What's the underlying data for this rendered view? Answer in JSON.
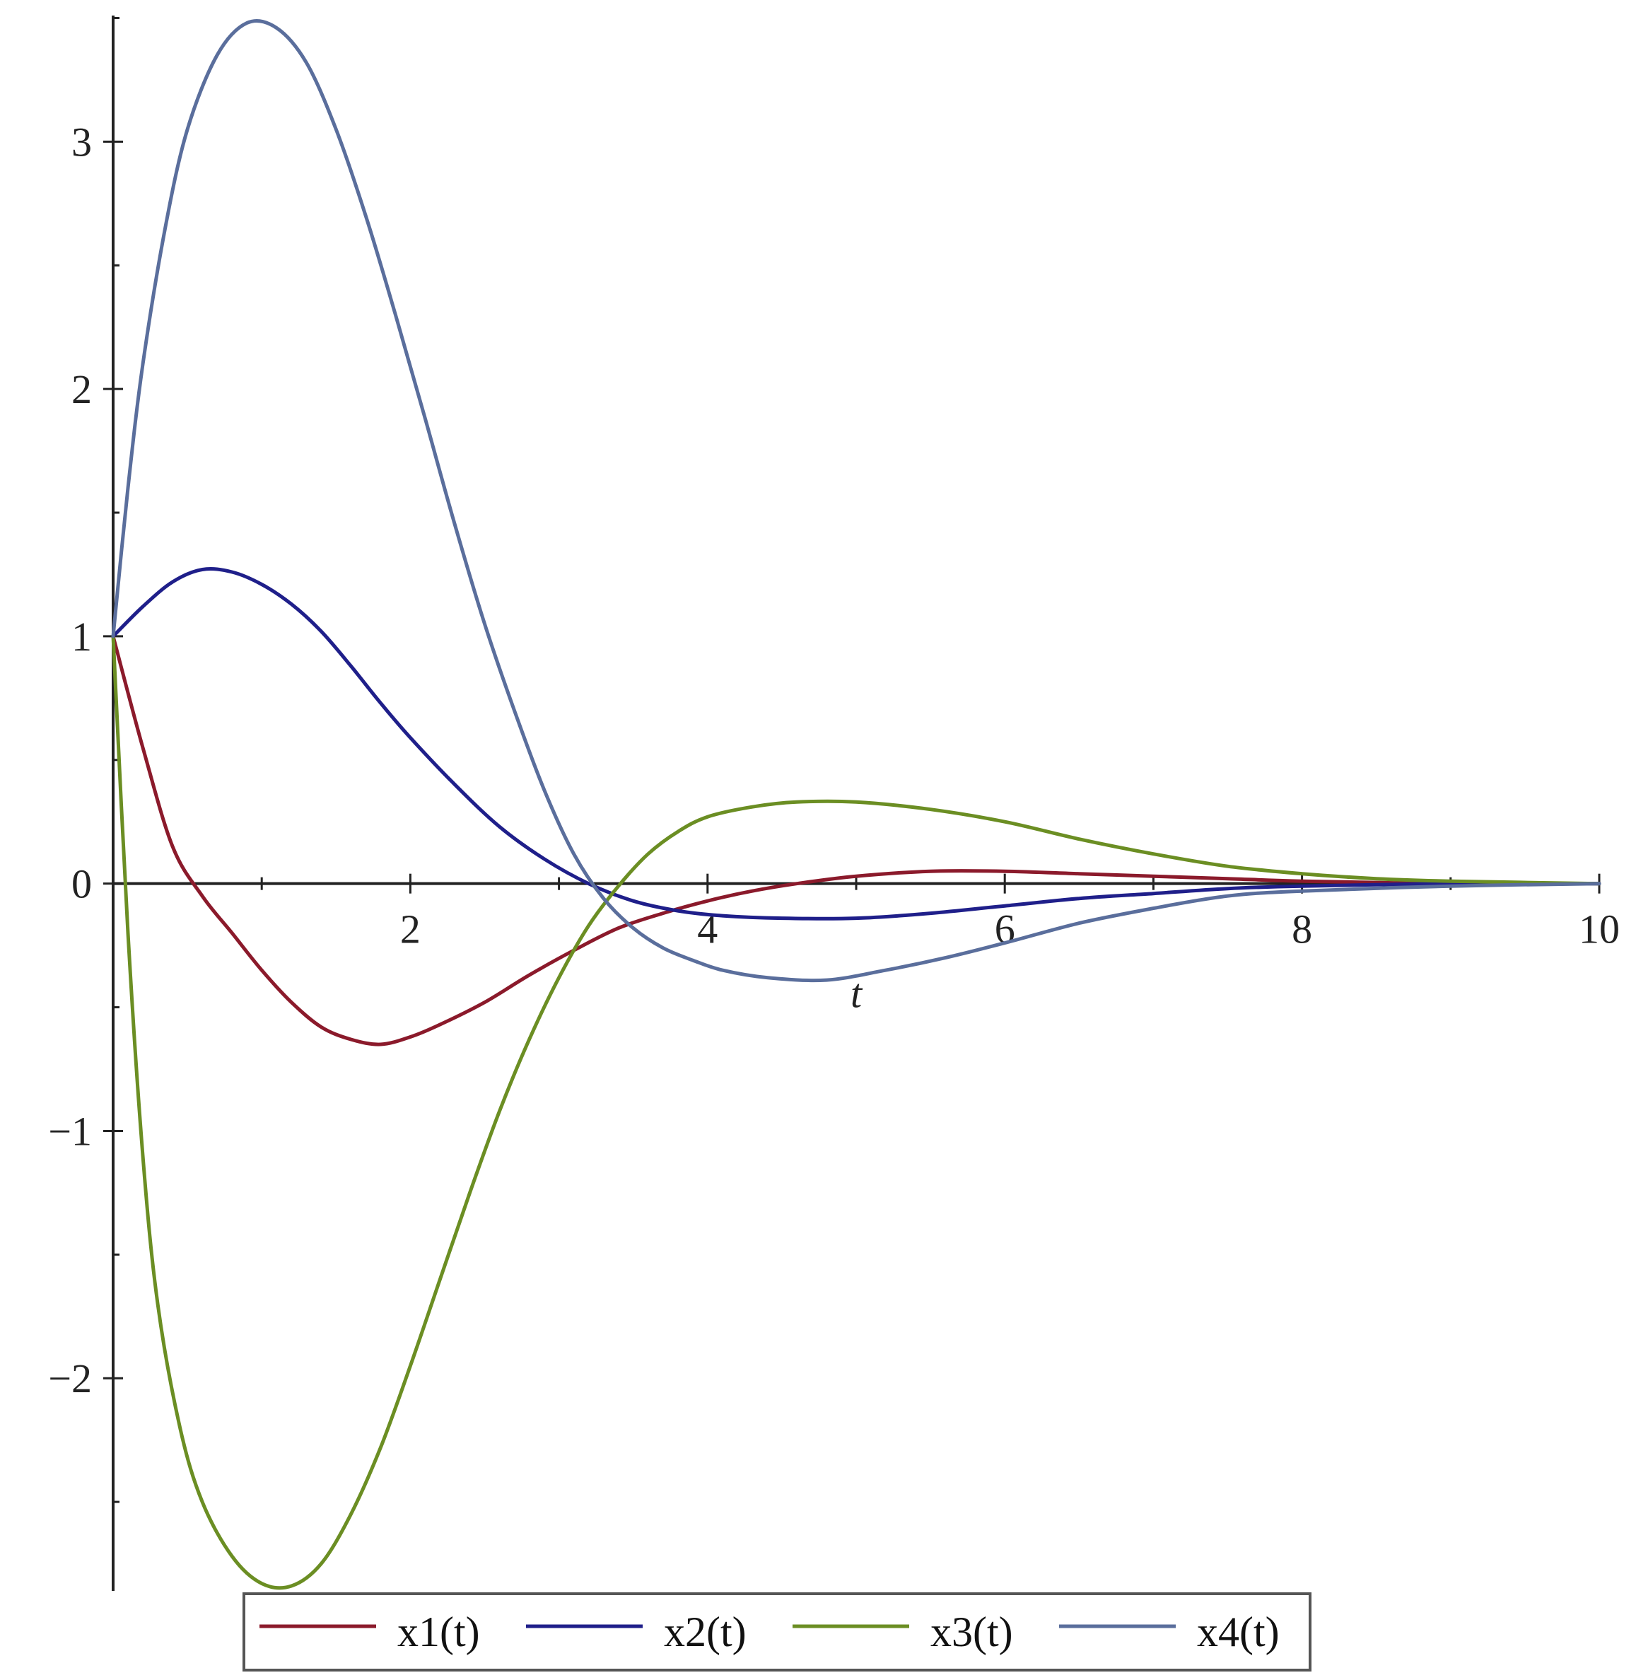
{
  "chart_data": {
    "type": "line",
    "title": "",
    "xlabel": "t",
    "ylabel": "",
    "xlim": [
      0,
      10
    ],
    "ylim": [
      -2.86,
      3.51
    ],
    "x_ticks": [
      2,
      4,
      6,
      8,
      10
    ],
    "y_ticks": [
      -2,
      -1,
      0,
      1,
      2,
      3
    ],
    "x_tick_labels": [
      "2",
      "4",
      "6",
      "8",
      "10"
    ],
    "y_tick_labels": [
      "−2",
      "−1",
      "0",
      "1",
      "2",
      "3"
    ],
    "grid": false,
    "legend_position": "bottom",
    "series": [
      {
        "name": "x1(t)",
        "color": "#8b1a2b",
        "points": [
          [
            0,
            1
          ],
          [
            0.2,
            0.55
          ],
          [
            0.4,
            0.15
          ],
          [
            0.6,
            -0.05
          ],
          [
            0.8,
            -0.2
          ],
          [
            1.0,
            -0.35
          ],
          [
            1.2,
            -0.48
          ],
          [
            1.4,
            -0.58
          ],
          [
            1.6,
            -0.63
          ],
          [
            1.8,
            -0.65
          ],
          [
            2.0,
            -0.62
          ],
          [
            2.2,
            -0.57
          ],
          [
            2.5,
            -0.48
          ],
          [
            2.8,
            -0.37
          ],
          [
            3.1,
            -0.27
          ],
          [
            3.4,
            -0.18
          ],
          [
            3.7,
            -0.12
          ],
          [
            4.0,
            -0.07
          ],
          [
            4.3,
            -0.03
          ],
          [
            4.6,
            0.0
          ],
          [
            5.0,
            0.03
          ],
          [
            5.5,
            0.05
          ],
          [
            6.0,
            0.05
          ],
          [
            6.5,
            0.04
          ],
          [
            7.0,
            0.03
          ],
          [
            7.5,
            0.02
          ],
          [
            8.0,
            0.01
          ],
          [
            9.0,
            0.0
          ],
          [
            10,
            0.0
          ]
        ]
      },
      {
        "name": "x2(t)",
        "color": "#1f1f8a",
        "points": [
          [
            0,
            1
          ],
          [
            0.2,
            1.12
          ],
          [
            0.4,
            1.22
          ],
          [
            0.6,
            1.27
          ],
          [
            0.8,
            1.26
          ],
          [
            1.0,
            1.21
          ],
          [
            1.2,
            1.13
          ],
          [
            1.4,
            1.02
          ],
          [
            1.6,
            0.88
          ],
          [
            1.8,
            0.73
          ],
          [
            2.0,
            0.59
          ],
          [
            2.3,
            0.4
          ],
          [
            2.6,
            0.23
          ],
          [
            2.9,
            0.1
          ],
          [
            3.2,
            0.0
          ],
          [
            3.5,
            -0.07
          ],
          [
            3.8,
            -0.11
          ],
          [
            4.1,
            -0.13
          ],
          [
            4.5,
            -0.14
          ],
          [
            5.0,
            -0.14
          ],
          [
            5.5,
            -0.12
          ],
          [
            6.0,
            -0.09
          ],
          [
            6.5,
            -0.06
          ],
          [
            7.0,
            -0.04
          ],
          [
            7.5,
            -0.02
          ],
          [
            8.0,
            -0.01
          ],
          [
            9.0,
            0.0
          ],
          [
            10,
            0.0
          ]
        ]
      },
      {
        "name": "x3(t)",
        "color": "#6b8e23",
        "points": [
          [
            0,
            1
          ],
          [
            0.1,
            -0.2
          ],
          [
            0.2,
            -1.1
          ],
          [
            0.3,
            -1.7
          ],
          [
            0.45,
            -2.2
          ],
          [
            0.6,
            -2.5
          ],
          [
            0.8,
            -2.72
          ],
          [
            1.0,
            -2.83
          ],
          [
            1.2,
            -2.84
          ],
          [
            1.4,
            -2.75
          ],
          [
            1.6,
            -2.55
          ],
          [
            1.8,
            -2.28
          ],
          [
            2.0,
            -1.95
          ],
          [
            2.2,
            -1.6
          ],
          [
            2.4,
            -1.25
          ],
          [
            2.6,
            -0.92
          ],
          [
            2.8,
            -0.63
          ],
          [
            3.0,
            -0.38
          ],
          [
            3.2,
            -0.17
          ],
          [
            3.4,
            -0.01
          ],
          [
            3.6,
            0.12
          ],
          [
            3.8,
            0.21
          ],
          [
            4.0,
            0.27
          ],
          [
            4.3,
            0.31
          ],
          [
            4.6,
            0.33
          ],
          [
            5.0,
            0.33
          ],
          [
            5.5,
            0.3
          ],
          [
            6.0,
            0.25
          ],
          [
            6.5,
            0.18
          ],
          [
            7.0,
            0.12
          ],
          [
            7.5,
            0.07
          ],
          [
            8.0,
            0.04
          ],
          [
            8.5,
            0.02
          ],
          [
            9.0,
            0.01
          ],
          [
            10,
            0.0
          ]
        ]
      },
      {
        "name": "x4(t)",
        "color": "#5a6e9c",
        "points": [
          [
            0,
            1
          ],
          [
            0.1,
            1.6
          ],
          [
            0.2,
            2.1
          ],
          [
            0.35,
            2.65
          ],
          [
            0.5,
            3.05
          ],
          [
            0.7,
            3.35
          ],
          [
            0.9,
            3.48
          ],
          [
            1.1,
            3.46
          ],
          [
            1.3,
            3.32
          ],
          [
            1.5,
            3.05
          ],
          [
            1.7,
            2.7
          ],
          [
            1.9,
            2.3
          ],
          [
            2.1,
            1.88
          ],
          [
            2.3,
            1.45
          ],
          [
            2.5,
            1.05
          ],
          [
            2.7,
            0.7
          ],
          [
            2.9,
            0.38
          ],
          [
            3.1,
            0.12
          ],
          [
            3.3,
            -0.06
          ],
          [
            3.5,
            -0.18
          ],
          [
            3.7,
            -0.26
          ],
          [
            3.9,
            -0.31
          ],
          [
            4.1,
            -0.35
          ],
          [
            4.4,
            -0.38
          ],
          [
            4.8,
            -0.39
          ],
          [
            5.2,
            -0.35
          ],
          [
            5.6,
            -0.3
          ],
          [
            6.0,
            -0.24
          ],
          [
            6.5,
            -0.16
          ],
          [
            7.0,
            -0.1
          ],
          [
            7.5,
            -0.05
          ],
          [
            8.0,
            -0.03
          ],
          [
            9.0,
            -0.01
          ],
          [
            10,
            0.0
          ]
        ]
      }
    ]
  }
}
